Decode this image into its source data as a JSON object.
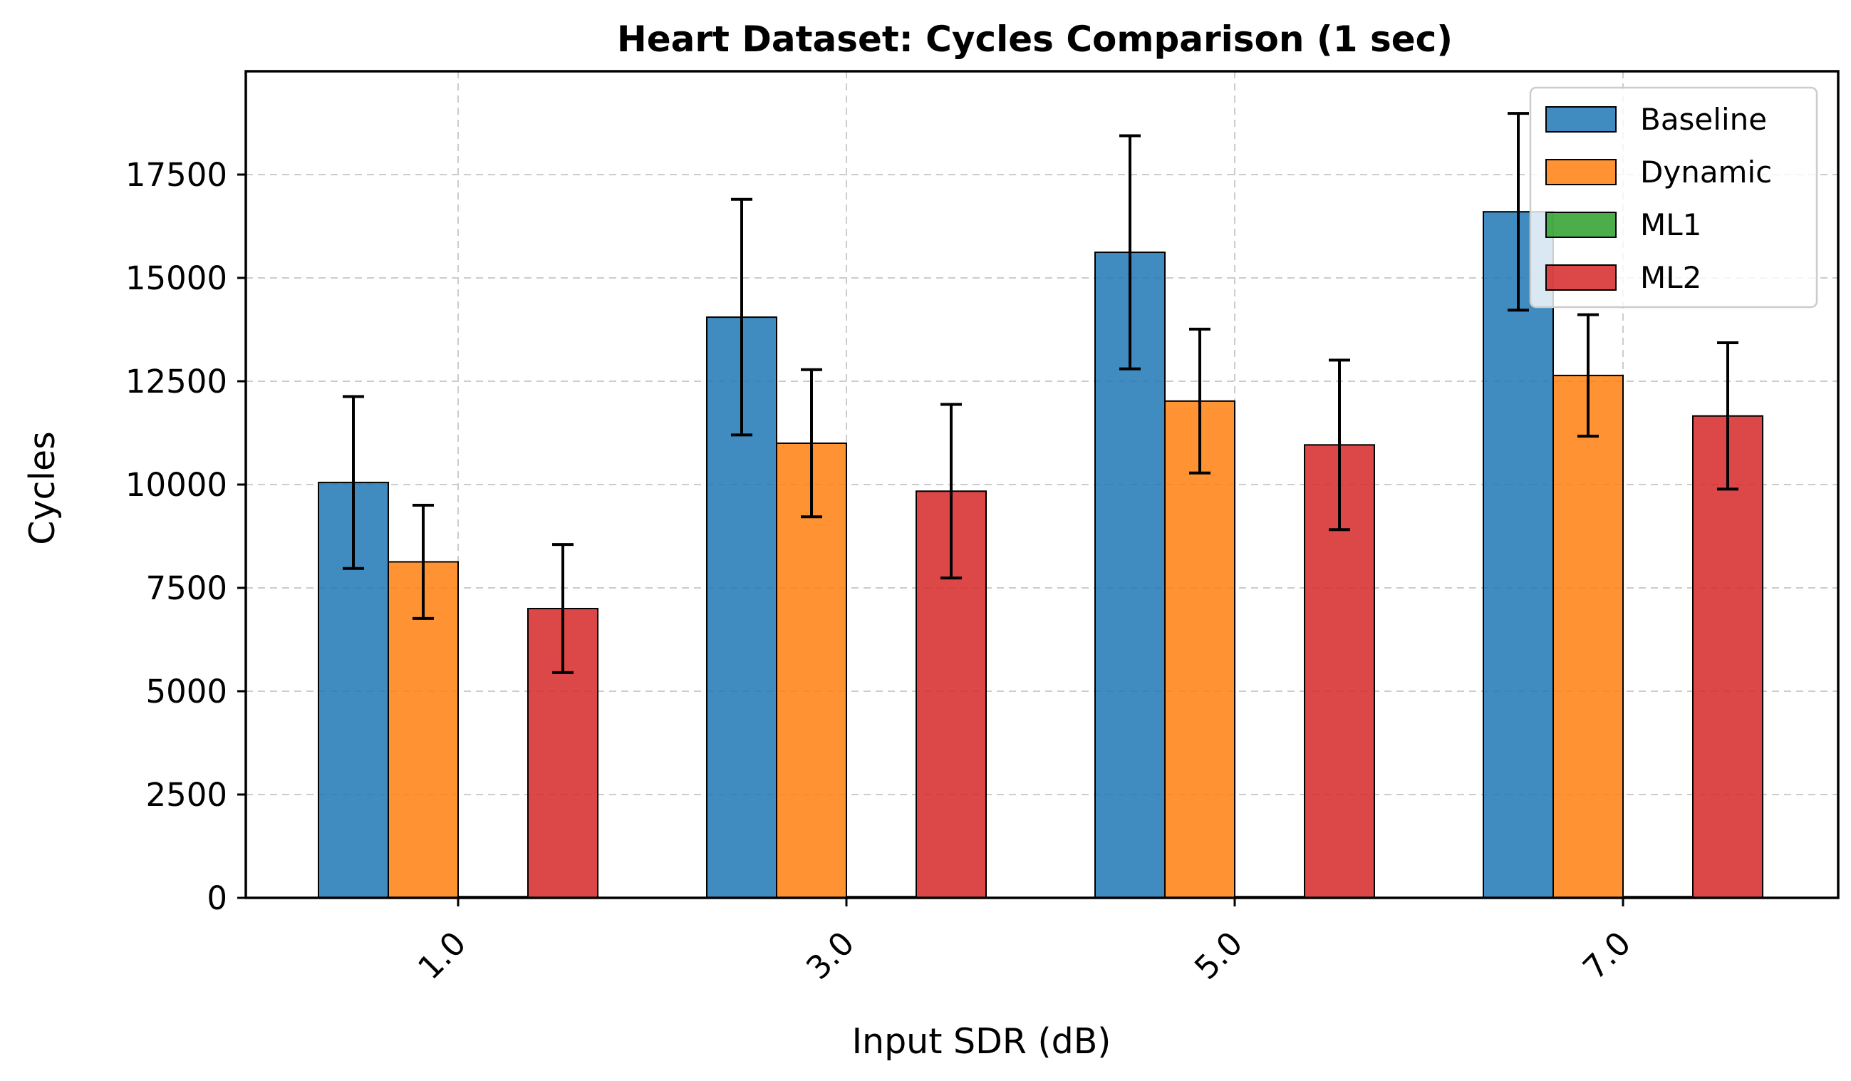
{
  "chart_data": {
    "type": "bar",
    "title": "Heart Dataset: Cycles Comparison (1 sec)",
    "xlabel": "Input SDR (dB)",
    "ylabel": "Cycles",
    "categories": [
      "1.0",
      "3.0",
      "5.0",
      "7.0"
    ],
    "ylim": [
      0,
      20000
    ],
    "yticks": [
      0,
      2500,
      5000,
      7500,
      10000,
      12500,
      15000,
      17500
    ],
    "grid": true,
    "legend_position": "top-right",
    "series": [
      {
        "name": "Baseline",
        "color": "#1f77b4",
        "values": [
          10050,
          14050,
          15620,
          16600
        ],
        "errors": [
          2080,
          2850,
          2820,
          2380
        ]
      },
      {
        "name": "Dynamic",
        "color": "#ff7f0e",
        "values": [
          8130,
          11000,
          12020,
          12640
        ],
        "errors": [
          1370,
          1780,
          1740,
          1470
        ]
      },
      {
        "name": "ML1",
        "color": "#2ca02c",
        "values": [
          30,
          30,
          30,
          30
        ],
        "errors": [
          0,
          0,
          0,
          0
        ]
      },
      {
        "name": "ML2",
        "color": "#d62728",
        "values": [
          7000,
          9840,
          10960,
          11660
        ],
        "errors": [
          1550,
          2100,
          2050,
          1770
        ]
      }
    ]
  }
}
